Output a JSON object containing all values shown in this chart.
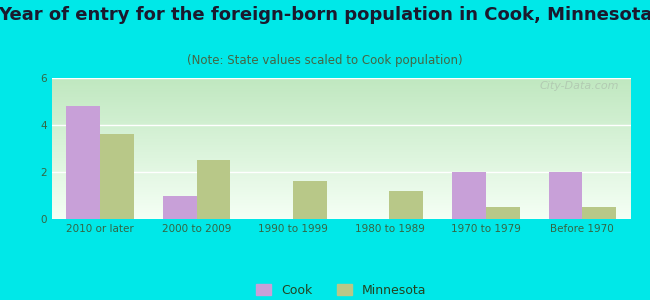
{
  "title": "Year of entry for the foreign-born population in Cook, Minnesota",
  "subtitle": "(Note: State values scaled to Cook population)",
  "categories": [
    "2010 or later",
    "2000 to 2009",
    "1990 to 1999",
    "1980 to 1989",
    "1970 to 1979",
    "Before 1970"
  ],
  "cook_values": [
    4.8,
    1.0,
    0,
    0,
    2.0,
    2.0
  ],
  "minnesota_values": [
    3.6,
    2.5,
    1.6,
    1.2,
    0.5,
    0.5
  ],
  "cook_color": "#c8a0d8",
  "minnesota_color": "#b8c888",
  "background_outer": "#00e8e8",
  "background_inner_top": "#f0f8f0",
  "background_inner_bottom": "#d0ecd0",
  "ylim": [
    0,
    6
  ],
  "yticks": [
    0,
    2,
    4,
    6
  ],
  "bar_width": 0.35,
  "title_fontsize": 13,
  "subtitle_fontsize": 8.5,
  "tick_fontsize": 7.5,
  "legend_fontsize": 9,
  "watermark": "City-Data.com"
}
